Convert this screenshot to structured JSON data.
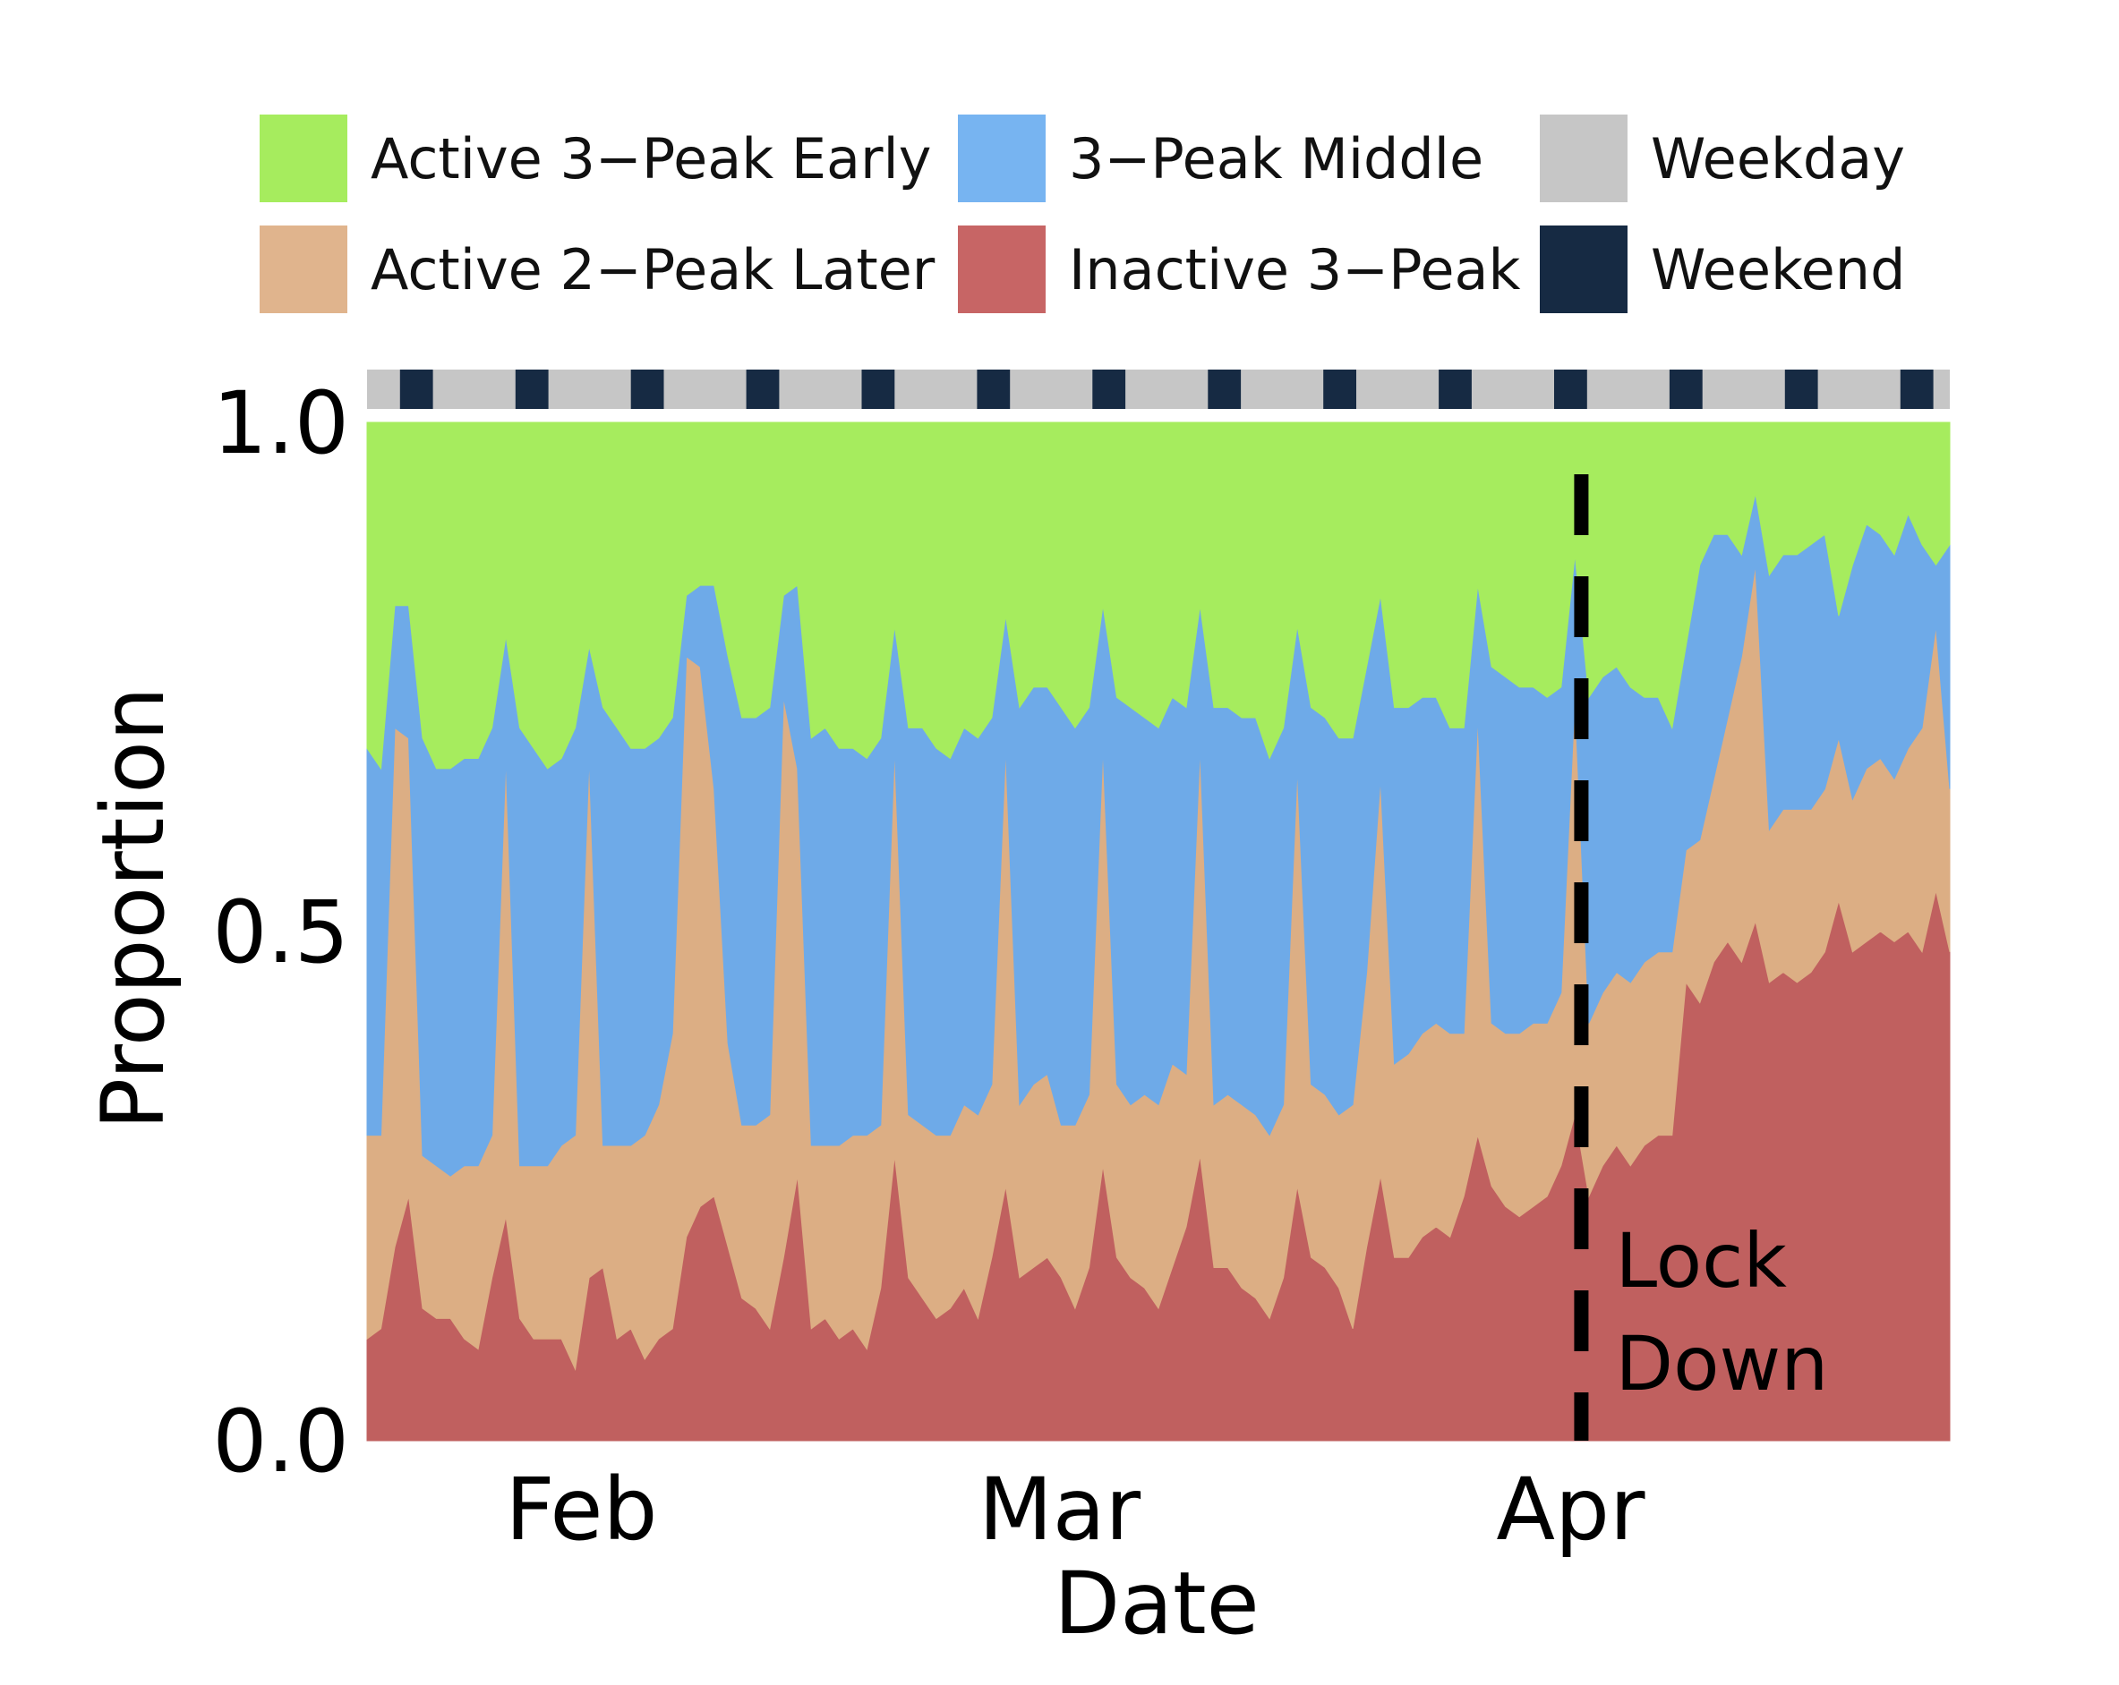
{
  "chart_data": {
    "type": "area",
    "stacked": true,
    "xlabel": "Date",
    "ylabel": "Proportion",
    "ylim": [
      0,
      1
    ],
    "yticks": [
      0.0,
      0.5,
      1.0
    ],
    "ytick_labels": [
      "0.0",
      "0.5",
      "1.0"
    ],
    "xtick_labels": [
      {
        "label": "Feb",
        "date": "2020-02-01"
      },
      {
        "label": "Mar",
        "date": "2020-03-01"
      },
      {
        "label": "Apr",
        "date": "2020-04-01"
      }
    ],
    "date_range": [
      "2020-01-19",
      "2020-04-24"
    ],
    "annotation": {
      "date": "2020-04-01",
      "lines": [
        "Lock",
        "Down"
      ],
      "style": "dashed"
    },
    "weekend_dates": [
      "2020-01-21",
      "2020-01-28",
      "2020-02-04",
      "2020-02-11",
      "2020-02-18",
      "2020-02-25",
      "2020-03-03",
      "2020-03-10",
      "2020-03-17",
      "2020-03-24",
      "2020-03-31",
      "2020-04-07",
      "2020-04-14",
      "2020-04-21"
    ],
    "series": [
      {
        "name": "Inactive 3−Peak",
        "color": "#c0605f",
        "values": [
          0.1,
          0.11,
          0.19,
          0.24,
          0.13,
          0.12,
          0.12,
          0.1,
          0.09,
          0.16,
          0.22,
          0.12,
          0.1,
          0.1,
          0.1,
          0.07,
          0.16,
          0.17,
          0.1,
          0.11,
          0.08,
          0.1,
          0.11,
          0.2,
          0.23,
          0.24,
          0.19,
          0.14,
          0.13,
          0.11,
          0.18,
          0.26,
          0.11,
          0.12,
          0.1,
          0.11,
          0.09,
          0.15,
          0.28,
          0.16,
          0.14,
          0.12,
          0.13,
          0.15,
          0.12,
          0.18,
          0.25,
          0.16,
          0.17,
          0.18,
          0.16,
          0.13,
          0.17,
          0.27,
          0.18,
          0.16,
          0.15,
          0.13,
          0.17,
          0.21,
          0.28,
          0.17,
          0.17,
          0.15,
          0.14,
          0.12,
          0.16,
          0.25,
          0.18,
          0.17,
          0.15,
          0.11,
          0.19,
          0.26,
          0.18,
          0.18,
          0.2,
          0.21,
          0.2,
          0.24,
          0.3,
          0.25,
          0.23,
          0.22,
          0.23,
          0.24,
          0.27,
          0.32,
          0.24,
          0.27,
          0.29,
          0.27,
          0.29,
          0.3,
          0.3,
          0.45,
          0.43,
          0.47,
          0.49,
          0.47,
          0.51,
          0.45,
          0.46,
          0.45,
          0.46,
          0.48,
          0.53,
          0.48,
          0.49,
          0.5,
          0.49,
          0.5,
          0.48,
          0.54,
          0.48
        ]
      },
      {
        "name": "Active 2−Peak Later",
        "color": "#dcae84",
        "values": [
          0.2,
          0.19,
          0.51,
          0.45,
          0.15,
          0.15,
          0.14,
          0.17,
          0.18,
          0.14,
          0.45,
          0.15,
          0.17,
          0.17,
          0.19,
          0.23,
          0.51,
          0.12,
          0.19,
          0.18,
          0.22,
          0.23,
          0.29,
          0.57,
          0.53,
          0.4,
          0.2,
          0.17,
          0.18,
          0.21,
          0.55,
          0.4,
          0.18,
          0.17,
          0.19,
          0.19,
          0.21,
          0.16,
          0.4,
          0.16,
          0.17,
          0.18,
          0.17,
          0.18,
          0.2,
          0.17,
          0.43,
          0.17,
          0.18,
          0.18,
          0.15,
          0.18,
          0.17,
          0.41,
          0.17,
          0.17,
          0.19,
          0.2,
          0.2,
          0.15,
          0.4,
          0.16,
          0.17,
          0.18,
          0.18,
          0.18,
          0.17,
          0.41,
          0.17,
          0.17,
          0.17,
          0.22,
          0.27,
          0.39,
          0.19,
          0.2,
          0.2,
          0.2,
          0.2,
          0.16,
          0.41,
          0.16,
          0.17,
          0.18,
          0.18,
          0.17,
          0.17,
          0.41,
          0.17,
          0.17,
          0.17,
          0.18,
          0.18,
          0.18,
          0.18,
          0.13,
          0.16,
          0.18,
          0.22,
          0.3,
          0.35,
          0.15,
          0.16,
          0.17,
          0.16,
          0.16,
          0.16,
          0.15,
          0.17,
          0.17,
          0.16,
          0.18,
          0.22,
          0.26,
          0.16
        ]
      },
      {
        "name": "3−Peak Middle",
        "color": "#6eaae8",
        "values": [
          0.38,
          0.36,
          0.12,
          0.13,
          0.41,
          0.39,
          0.4,
          0.4,
          0.4,
          0.4,
          0.12,
          0.43,
          0.41,
          0.39,
          0.38,
          0.4,
          0.11,
          0.43,
          0.41,
          0.39,
          0.38,
          0.36,
          0.31,
          0.06,
          0.08,
          0.2,
          0.38,
          0.4,
          0.4,
          0.4,
          0.1,
          0.18,
          0.4,
          0.41,
          0.39,
          0.38,
          0.37,
          0.38,
          0.12,
          0.38,
          0.39,
          0.38,
          0.37,
          0.37,
          0.37,
          0.36,
          0.13,
          0.39,
          0.39,
          0.38,
          0.41,
          0.39,
          0.38,
          0.14,
          0.38,
          0.39,
          0.37,
          0.37,
          0.36,
          0.36,
          0.14,
          0.39,
          0.38,
          0.38,
          0.39,
          0.37,
          0.37,
          0.14,
          0.37,
          0.37,
          0.37,
          0.36,
          0.3,
          0.18,
          0.35,
          0.34,
          0.33,
          0.32,
          0.3,
          0.3,
          0.13,
          0.35,
          0.35,
          0.34,
          0.33,
          0.32,
          0.3,
          0.14,
          0.32,
          0.31,
          0.3,
          0.29,
          0.26,
          0.25,
          0.22,
          0.2,
          0.27,
          0.24,
          0.18,
          0.1,
          0.07,
          0.25,
          0.25,
          0.25,
          0.26,
          0.25,
          0.12,
          0.23,
          0.24,
          0.22,
          0.22,
          0.23,
          0.18,
          0.06,
          0.24
        ]
      },
      {
        "name": "Active 3−Peak Early",
        "color": "#a6ec5e",
        "values": [
          0.32,
          0.34,
          0.18,
          0.18,
          0.31,
          0.34,
          0.34,
          0.33,
          0.33,
          0.3,
          0.21,
          0.3,
          0.32,
          0.34,
          0.33,
          0.3,
          0.22,
          0.28,
          0.3,
          0.32,
          0.32,
          0.31,
          0.29,
          0.17,
          0.16,
          0.16,
          0.23,
          0.29,
          0.29,
          0.28,
          0.17,
          0.16,
          0.31,
          0.3,
          0.32,
          0.32,
          0.33,
          0.31,
          0.2,
          0.3,
          0.3,
          0.32,
          0.33,
          0.3,
          0.31,
          0.29,
          0.19,
          0.28,
          0.26,
          0.26,
          0.28,
          0.3,
          0.28,
          0.18,
          0.27,
          0.28,
          0.29,
          0.3,
          0.27,
          0.28,
          0.18,
          0.28,
          0.28,
          0.29,
          0.29,
          0.33,
          0.3,
          0.2,
          0.28,
          0.29,
          0.31,
          0.31,
          0.24,
          0.17,
          0.28,
          0.28,
          0.27,
          0.27,
          0.3,
          0.3,
          0.16,
          0.24,
          0.25,
          0.26,
          0.26,
          0.27,
          0.26,
          0.13,
          0.27,
          0.25,
          0.24,
          0.26,
          0.27,
          0.27,
          0.3,
          0.22,
          0.14,
          0.11,
          0.11,
          0.13,
          0.07,
          0.15,
          0.13,
          0.13,
          0.12,
          0.11,
          0.19,
          0.14,
          0.1,
          0.11,
          0.13,
          0.09,
          0.12,
          0.14,
          0.12
        ]
      }
    ]
  },
  "legend": {
    "items": [
      {
        "label": "Active 3−Peak Early",
        "color": "#a6ec5e"
      },
      {
        "label": "3−Peak Middle",
        "color": "#77b4f1"
      },
      {
        "label": "Weekday",
        "color": "#c6c6c6"
      },
      {
        "label": "Active 2−Peak Later",
        "color": "#e0b48d"
      },
      {
        "label": "Inactive 3−Peak",
        "color": "#c76565"
      },
      {
        "label": "Weekend",
        "color": "#162a43"
      }
    ]
  }
}
